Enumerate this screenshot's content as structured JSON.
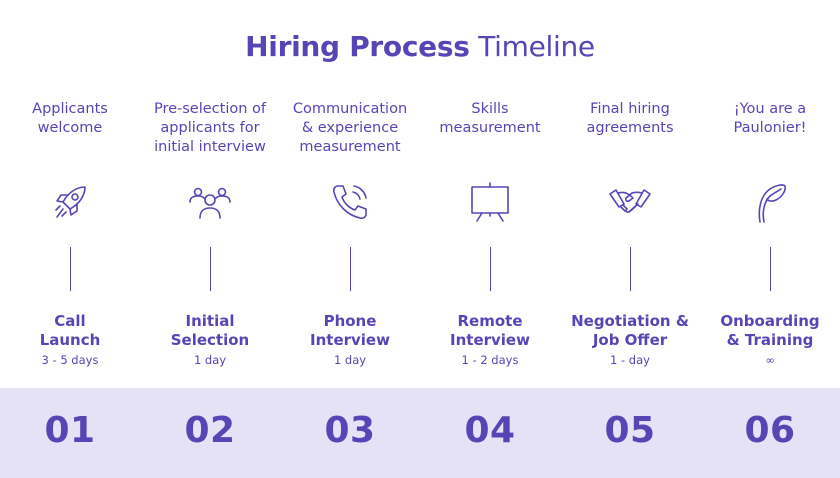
{
  "title": {
    "bold": "Hiring Process",
    "light": "Timeline"
  },
  "steps": [
    {
      "number": "01",
      "description": [
        "Applicants",
        "welcome"
      ],
      "stage": [
        "Call",
        "Launch"
      ],
      "duration": "3 - 5 days",
      "icon": "rocket-icon"
    },
    {
      "number": "02",
      "description": [
        "Pre-selection of",
        "applicants for",
        "initial interview"
      ],
      "stage": [
        "Initial",
        "Selection"
      ],
      "duration": "1 day",
      "icon": "people-group-icon"
    },
    {
      "number": "03",
      "description": [
        "Communication",
        "& experience",
        "measurement"
      ],
      "stage": [
        "Phone",
        "Interview"
      ],
      "duration": "1 day",
      "icon": "phone-icon"
    },
    {
      "number": "04",
      "description": [
        "Skills",
        "measurement"
      ],
      "stage": [
        "Remote",
        "Interview"
      ],
      "duration": "1 - 2 days",
      "icon": "presentation-board-icon"
    },
    {
      "number": "05",
      "description": [
        "Final hiring",
        "agreements"
      ],
      "stage": [
        "Negotiation &",
        "Job Offer"
      ],
      "duration": "1 - day",
      "icon": "handshake-icon"
    },
    {
      "number": "06",
      "description": [
        "¡You are a",
        "Paulonier!"
      ],
      "stage": [
        "Onboarding",
        "& Training"
      ],
      "duration": "∞",
      "icon": "sprout-icon"
    }
  ],
  "colors": {
    "accent": "#5646b5",
    "band": "#e5e2f5",
    "background": "#ffffff"
  }
}
